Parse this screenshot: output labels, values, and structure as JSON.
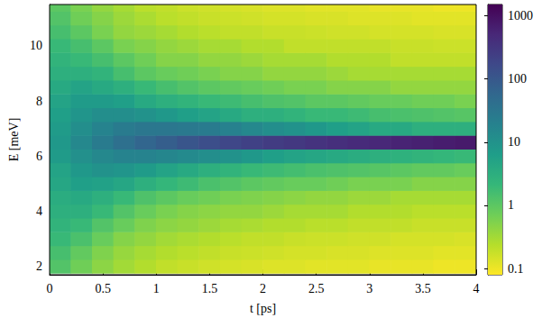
{
  "chart_data": {
    "type": "heatmap",
    "x_label": "t [ps]",
    "y_label": "E [meV]",
    "xlim": [
      0,
      4
    ],
    "xticks": [
      0,
      0.5,
      1,
      1.5,
      2,
      2.5,
      3,
      3.5,
      4
    ],
    "ylim": [
      1.7,
      11.5
    ],
    "yticks": [
      2,
      4,
      6,
      8,
      10
    ],
    "x": [
      0.1,
      0.3,
      0.5,
      0.7,
      0.9,
      1.1,
      1.3,
      1.5,
      1.7,
      1.9,
      2.1,
      2.3,
      2.5,
      2.7,
      2.9,
      3.1,
      3.3,
      3.5,
      3.7,
      3.9
    ],
    "y": [
      2,
      2.5,
      3,
      3.5,
      4,
      4.5,
      5,
      5.5,
      6,
      6.5,
      7,
      7.5,
      8,
      8.5,
      9,
      9.5,
      10,
      10.5,
      11,
      11.5
    ],
    "z": [
      [
        1.2,
        0.7,
        0.45,
        0.32,
        0.25,
        0.2,
        0.18,
        0.16,
        0.15,
        0.14,
        0.13,
        0.13,
        0.12,
        0.12,
        0.12,
        0.11,
        0.11,
        0.11,
        0.1,
        0.1
      ],
      [
        1.5,
        0.9,
        0.55,
        0.38,
        0.3,
        0.25,
        0.22,
        0.2,
        0.18,
        0.17,
        0.16,
        0.15,
        0.15,
        0.14,
        0.14,
        0.13,
        0.13,
        0.13,
        0.12,
        0.12
      ],
      [
        2,
        1.4,
        0.8,
        0.5,
        0.4,
        0.32,
        0.28,
        0.25,
        0.22,
        0.2,
        0.2,
        0.18,
        0.17,
        0.17,
        0.16,
        0.16,
        0.15,
        0.15,
        0.15,
        0.14
      ],
      [
        2.5,
        2,
        1.2,
        0.8,
        0.55,
        0.45,
        0.4,
        0.35,
        0.3,
        0.28,
        0.25,
        0.25,
        0.22,
        0.22,
        0.2,
        0.2,
        0.2,
        0.18,
        0.18,
        0.18
      ],
      [
        3,
        3,
        2,
        1.2,
        0.8,
        0.6,
        0.5,
        0.45,
        0.4,
        0.4,
        0.35,
        0.3,
        0.3,
        0.3,
        0.25,
        0.25,
        0.25,
        0.22,
        0.22,
        0.22
      ],
      [
        3.5,
        4,
        3,
        2,
        1.3,
        1,
        0.8,
        0.7,
        0.6,
        0.55,
        0.5,
        0.45,
        0.4,
        0.4,
        0.35,
        0.35,
        0.3,
        0.3,
        0.3,
        0.3
      ],
      [
        4.5,
        6,
        5.5,
        4.5,
        3,
        2.2,
        1.8,
        1.4,
        1.2,
        1,
        0.9,
        0.8,
        0.8,
        0.7,
        0.6,
        0.6,
        0.6,
        0.5,
        0.5,
        0.5
      ],
      [
        5,
        8,
        10,
        9,
        7,
        5,
        4,
        3,
        2.5,
        2,
        1.8,
        1.6,
        1.4,
        1.3,
        1.2,
        1.1,
        1,
        0.9,
        0.9,
        0.8
      ],
      [
        7,
        11,
        15,
        18,
        18,
        16,
        14,
        12,
        10,
        8,
        6,
        5,
        4.5,
        4,
        3.5,
        3,
        2.8,
        2.5,
        2.2,
        2
      ],
      [
        8,
        15,
        25,
        40,
        60,
        80,
        110,
        140,
        180,
        220,
        260,
        300,
        350,
        400,
        450,
        500,
        560,
        620,
        680,
        750
      ],
      [
        7,
        12,
        18,
        25,
        30,
        30,
        28,
        25,
        20,
        15,
        12,
        10,
        8,
        6,
        5,
        4,
        4,
        3,
        3,
        3
      ],
      [
        6,
        9,
        12,
        12,
        10,
        8,
        6,
        5,
        4,
        3,
        3,
        2.5,
        2,
        2,
        1.8,
        1.5,
        1.4,
        1.3,
        1.2,
        1.1
      ],
      [
        5,
        7,
        7,
        6,
        4,
        3,
        2.5,
        2,
        1.8,
        1.5,
        1.3,
        1.2,
        1,
        1,
        0.9,
        0.8,
        0.8,
        0.7,
        0.7,
        0.6
      ],
      [
        4,
        5,
        4,
        3,
        2,
        1.5,
        1.2,
        1,
        0.9,
        0.8,
        0.7,
        0.6,
        0.6,
        0.5,
        0.5,
        0.5,
        0.4,
        0.4,
        0.4,
        0.4
      ],
      [
        3,
        3,
        2.5,
        1.5,
        1,
        0.8,
        0.7,
        0.6,
        0.5,
        0.5,
        0.4,
        0.4,
        0.4,
        0.35,
        0.3,
        0.3,
        0.3,
        0.3,
        0.3,
        0.3
      ],
      [
        2.5,
        2,
        1.5,
        1,
        0.7,
        0.5,
        0.5,
        0.4,
        0.4,
        0.35,
        0.3,
        0.3,
        0.3,
        0.25,
        0.25,
        0.25,
        0.2,
        0.2,
        0.2,
        0.2
      ],
      [
        2,
        1.5,
        1,
        0.6,
        0.5,
        0.4,
        0.35,
        0.3,
        0.3,
        0.25,
        0.25,
        0.2,
        0.2,
        0.2,
        0.2,
        0.2,
        0.18,
        0.18,
        0.17,
        0.17
      ],
      [
        1.5,
        1,
        0.6,
        0.4,
        0.35,
        0.3,
        0.25,
        0.22,
        0.2,
        0.2,
        0.18,
        0.18,
        0.17,
        0.16,
        0.16,
        0.15,
        0.15,
        0.15,
        0.14,
        0.14
      ],
      [
        1.2,
        0.7,
        0.5,
        0.35,
        0.28,
        0.22,
        0.2,
        0.18,
        0.17,
        0.16,
        0.15,
        0.15,
        0.14,
        0.14,
        0.13,
        0.13,
        0.13,
        0.12,
        0.12,
        0.12
      ],
      [
        1,
        0.6,
        0.4,
        0.3,
        0.22,
        0.2,
        0.17,
        0.16,
        0.15,
        0.14,
        0.13,
        0.13,
        0.12,
        0.12,
        0.12,
        0.11,
        0.11,
        0.11,
        0.1,
        0.1
      ]
    ],
    "colorbar": {
      "range": [
        0.08,
        1500
      ],
      "ticks": [
        0.1,
        1,
        10,
        100,
        1000
      ],
      "log": true
    }
  }
}
